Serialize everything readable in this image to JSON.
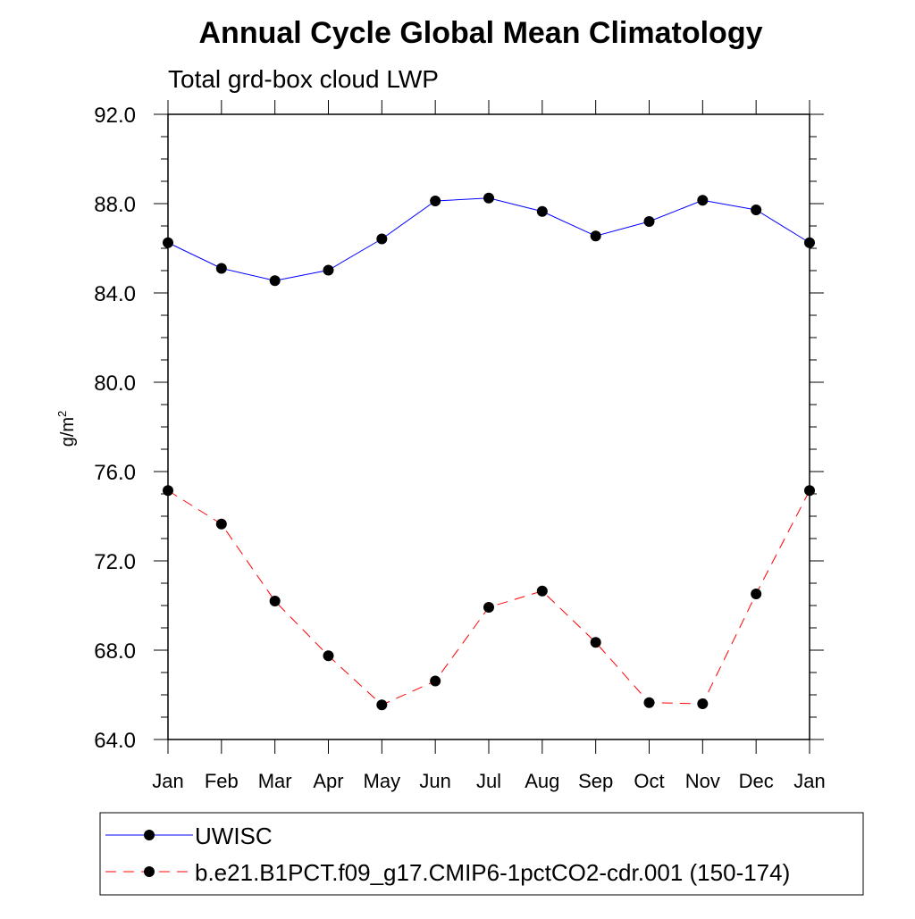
{
  "chart_data": {
    "type": "line",
    "title": "Annual Cycle Global Mean Climatology",
    "subtitle": "Total grd-box cloud LWP",
    "ylabel_base": "g/m",
    "ylabel_sup": "2",
    "xlabel": "",
    "categories": [
      "Jan",
      "Feb",
      "Mar",
      "Apr",
      "May",
      "Jun",
      "Jul",
      "Aug",
      "Sep",
      "Oct",
      "Nov",
      "Dec",
      "Jan"
    ],
    "ylim": [
      64.0,
      92.0
    ],
    "yticks": [
      "64.0",
      "68.0",
      "72.0",
      "76.0",
      "80.0",
      "84.0",
      "88.0",
      "92.0"
    ],
    "grid": false,
    "legend_position": "bottom",
    "series": [
      {
        "name": "UWISC",
        "color": "#0000ff",
        "line_style": "solid",
        "marker": "filled-circle",
        "values": [
          86.25,
          85.1,
          84.55,
          85.02,
          86.42,
          88.12,
          88.25,
          87.65,
          86.55,
          87.2,
          88.15,
          87.72,
          86.25
        ]
      },
      {
        "name": "b.e21.B1PCT.f09_g17.CMIP6-1pctCO2-cdr.001 (150-174)",
        "color": "#ff0000",
        "line_style": "dashed",
        "marker": "filled-circle",
        "values": [
          75.15,
          73.65,
          70.2,
          67.75,
          65.55,
          66.62,
          69.92,
          70.65,
          68.35,
          65.65,
          65.6,
          70.52,
          75.15
        ]
      }
    ]
  }
}
